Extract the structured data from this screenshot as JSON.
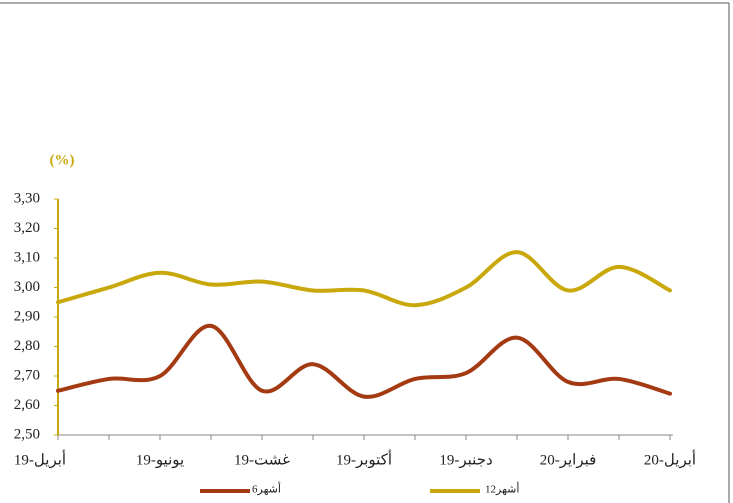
{
  "chart_data": {
    "type": "line",
    "y_axis_label": "(%)",
    "categories": [
      "19-أبريل",
      null,
      "19-يونيو",
      null,
      "19-غشت",
      null,
      "19-أكتوبر",
      null,
      "19-دجنبر",
      null,
      "20-فبراير",
      null,
      "20-أبريل"
    ],
    "series": [
      {
        "name": "6أشهر",
        "color": "#a33a12",
        "values": [
          2.65,
          2.69,
          2.7,
          2.87,
          2.65,
          2.74,
          2.63,
          2.69,
          2.71,
          2.83,
          2.68,
          2.69,
          2.64
        ]
      },
      {
        "name": "12أشهر",
        "color": "#c9a80c",
        "values": [
          2.95,
          3.0,
          3.05,
          3.01,
          3.02,
          2.99,
          2.99,
          2.94,
          3.0,
          3.12,
          2.99,
          3.07,
          2.99
        ]
      }
    ],
    "ylim": [
      2.5,
      3.3
    ],
    "yticks": [
      {
        "value": 2.5,
        "label": "2,50"
      },
      {
        "value": 2.6,
        "label": "2,60"
      },
      {
        "value": 2.7,
        "label": "2,70"
      },
      {
        "value": 2.8,
        "label": "2,80"
      },
      {
        "value": 2.9,
        "label": "2,90"
      },
      {
        "value": 3.0,
        "label": "3,00"
      },
      {
        "value": 3.1,
        "label": "3,10"
      },
      {
        "value": 3.2,
        "label": "3,20"
      },
      {
        "value": 3.3,
        "label": "3,30"
      }
    ],
    "legend": "bottom"
  }
}
